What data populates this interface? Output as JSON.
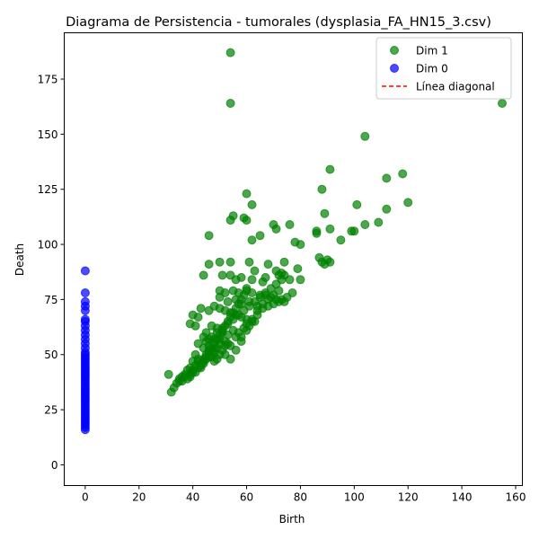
{
  "chart_data": {
    "type": "scatter",
    "title": "Diagrama de Persistencia - tumorales (dysplasia_FA_HN15_3.csv)",
    "xlabel": "Birth",
    "ylabel": "Death",
    "xlim": [
      -7.8,
      162.5
    ],
    "ylim": [
      -9.4,
      196.0
    ],
    "xticks": [
      0,
      20,
      40,
      60,
      80,
      100,
      120,
      140,
      160
    ],
    "yticks": [
      0,
      25,
      50,
      75,
      100,
      125,
      150,
      175
    ],
    "grid": false,
    "legend_position": "top-right",
    "legend": [
      {
        "label": "Dim 1",
        "kind": "marker",
        "color": "#008000"
      },
      {
        "label": "Dim 0",
        "kind": "marker",
        "color": "#0000ff"
      },
      {
        "label": "Línea diagonal",
        "kind": "dashed-line",
        "color": "#ff0000"
      }
    ],
    "series": [
      {
        "name": "Dim 1",
        "color": "#008000",
        "opacity": 0.7,
        "points": [
          [
            54,
            187
          ],
          [
            54,
            164
          ],
          [
            155,
            164
          ],
          [
            104,
            149
          ],
          [
            91,
            134
          ],
          [
            118,
            132
          ],
          [
            112,
            130
          ],
          [
            88,
            125
          ],
          [
            60,
            123
          ],
          [
            120,
            119
          ],
          [
            62,
            118
          ],
          [
            101,
            118
          ],
          [
            112,
            116
          ],
          [
            89,
            114
          ],
          [
            55,
            113
          ],
          [
            54,
            111
          ],
          [
            59,
            112
          ],
          [
            60,
            111
          ],
          [
            70,
            109
          ],
          [
            76,
            109
          ],
          [
            104,
            109
          ],
          [
            109,
            110
          ],
          [
            71,
            107
          ],
          [
            91,
            107
          ],
          [
            65,
            104
          ],
          [
            46,
            104
          ],
          [
            95,
            102
          ],
          [
            62,
            102
          ],
          [
            78,
            101
          ],
          [
            80,
            100
          ],
          [
            86,
            106
          ],
          [
            86,
            105
          ],
          [
            99,
            106
          ],
          [
            100,
            106
          ],
          [
            46,
            91
          ],
          [
            50,
            92
          ],
          [
            54,
            92
          ],
          [
            61,
            92
          ],
          [
            68,
            91
          ],
          [
            74,
            92
          ],
          [
            79,
            89
          ],
          [
            87,
            94
          ],
          [
            88,
            92
          ],
          [
            89,
            91
          ],
          [
            90,
            93
          ],
          [
            91,
            92
          ],
          [
            71,
            88
          ],
          [
            73,
            87
          ],
          [
            74,
            86
          ],
          [
            63,
            88
          ],
          [
            54,
            86
          ],
          [
            51,
            86
          ],
          [
            44,
            86
          ],
          [
            56,
            84
          ],
          [
            58,
            85
          ],
          [
            62,
            84
          ],
          [
            66,
            83
          ],
          [
            67,
            85
          ],
          [
            72,
            86
          ],
          [
            76,
            84
          ],
          [
            80,
            84
          ],
          [
            50,
            79
          ],
          [
            52,
            78
          ],
          [
            55,
            79
          ],
          [
            57,
            78
          ],
          [
            60,
            80
          ],
          [
            62,
            78
          ],
          [
            65,
            77
          ],
          [
            67,
            77
          ],
          [
            69,
            76
          ],
          [
            71,
            75
          ],
          [
            73,
            75
          ],
          [
            75,
            76
          ],
          [
            77,
            78
          ],
          [
            50,
            76
          ],
          [
            53,
            74
          ],
          [
            56,
            75
          ],
          [
            58,
            73
          ],
          [
            61,
            74
          ],
          [
            64,
            72
          ],
          [
            66,
            71
          ],
          [
            68,
            72
          ],
          [
            70,
            73
          ],
          [
            72,
            74
          ],
          [
            74,
            74
          ],
          [
            39,
            64
          ],
          [
            40,
            68
          ],
          [
            42,
            67
          ],
          [
            43,
            71
          ],
          [
            46,
            70
          ],
          [
            48,
            72
          ],
          [
            50,
            71
          ],
          [
            52,
            70
          ],
          [
            54,
            69
          ],
          [
            56,
            68
          ],
          [
            58,
            67
          ],
          [
            60,
            66
          ],
          [
            62,
            65
          ],
          [
            64,
            68
          ],
          [
            41,
            63
          ],
          [
            45,
            60
          ],
          [
            47,
            63
          ],
          [
            49,
            62
          ],
          [
            51,
            60
          ],
          [
            53,
            59
          ],
          [
            55,
            61
          ],
          [
            57,
            60
          ],
          [
            59,
            62
          ],
          [
            61,
            63
          ],
          [
            63,
            65
          ],
          [
            42,
            55
          ],
          [
            44,
            53
          ],
          [
            46,
            57
          ],
          [
            48,
            57
          ],
          [
            50,
            55
          ],
          [
            52,
            56
          ],
          [
            54,
            54
          ],
          [
            56,
            58
          ],
          [
            58,
            58
          ],
          [
            60,
            61
          ],
          [
            39,
            44
          ],
          [
            40,
            47
          ],
          [
            41,
            50
          ],
          [
            42,
            48
          ],
          [
            43,
            46
          ],
          [
            44,
            48
          ],
          [
            45,
            50
          ],
          [
            46,
            52
          ],
          [
            47,
            49
          ],
          [
            48,
            51
          ],
          [
            49,
            53
          ],
          [
            50,
            50
          ],
          [
            51,
            52
          ],
          [
            52,
            54
          ],
          [
            53,
            55
          ],
          [
            35,
            38
          ],
          [
            36,
            40
          ],
          [
            37,
            41
          ],
          [
            38,
            43
          ],
          [
            39,
            40
          ],
          [
            40,
            42
          ],
          [
            41,
            45
          ],
          [
            42,
            47
          ],
          [
            43,
            44
          ],
          [
            44,
            46
          ],
          [
            45,
            48
          ],
          [
            46,
            49
          ],
          [
            47,
            51
          ],
          [
            48,
            47
          ],
          [
            49,
            48
          ],
          [
            31,
            41
          ],
          [
            32,
            33
          ],
          [
            33,
            35
          ],
          [
            34,
            37
          ],
          [
            35,
            39
          ],
          [
            36,
            38
          ],
          [
            37,
            40
          ],
          [
            38,
            39
          ],
          [
            39,
            41
          ],
          [
            40,
            43
          ],
          [
            41,
            42
          ],
          [
            42,
            44
          ],
          [
            43,
            45
          ],
          [
            44,
            47
          ],
          [
            45,
            49
          ],
          [
            46,
            51
          ],
          [
            47,
            53
          ],
          [
            48,
            55
          ],
          [
            49,
            57
          ],
          [
            50,
            59
          ],
          [
            51,
            61
          ],
          [
            52,
            63
          ],
          [
            53,
            65
          ],
          [
            54,
            67
          ],
          [
            55,
            69
          ],
          [
            56,
            71
          ],
          [
            57,
            73
          ],
          [
            58,
            75
          ],
          [
            59,
            77
          ],
          [
            60,
            79
          ],
          [
            45,
            56
          ],
          [
            47,
            58
          ],
          [
            49,
            60
          ],
          [
            51,
            62
          ],
          [
            53,
            64
          ],
          [
            55,
            66
          ],
          [
            57,
            68
          ],
          [
            59,
            70
          ],
          [
            61,
            72
          ],
          [
            63,
            74
          ],
          [
            65,
            76
          ],
          [
            67,
            78
          ],
          [
            69,
            80
          ],
          [
            71,
            82
          ],
          [
            73,
            84
          ],
          [
            44,
            58
          ],
          [
            46,
            54
          ],
          [
            48,
            53
          ],
          [
            50,
            57
          ],
          [
            52,
            50
          ],
          [
            54,
            48
          ],
          [
            56,
            52
          ],
          [
            58,
            56
          ],
          [
            60,
            64
          ],
          [
            62,
            66
          ],
          [
            64,
            70
          ],
          [
            66,
            73
          ],
          [
            68,
            75
          ],
          [
            70,
            77
          ],
          [
            72,
            79
          ]
        ]
      },
      {
        "name": "Dim 0",
        "color": "#0000ff",
        "opacity": 0.7,
        "points": [
          [
            0,
            88
          ],
          [
            0,
            78
          ],
          [
            0,
            74
          ],
          [
            0,
            72
          ],
          [
            0,
            70
          ],
          [
            0,
            66
          ],
          [
            0,
            65
          ],
          [
            0,
            63
          ],
          [
            0,
            61
          ],
          [
            0,
            59
          ],
          [
            0,
            57
          ],
          [
            0,
            55
          ],
          [
            0,
            53
          ],
          [
            0,
            51
          ],
          [
            0,
            50
          ],
          [
            0,
            49
          ],
          [
            0,
            48
          ],
          [
            0,
            47
          ],
          [
            0,
            46
          ],
          [
            0,
            45
          ],
          [
            0,
            44
          ],
          [
            0,
            43
          ],
          [
            0,
            42
          ],
          [
            0,
            41
          ],
          [
            0,
            40
          ],
          [
            0,
            39
          ],
          [
            0,
            38
          ],
          [
            0,
            37
          ],
          [
            0,
            36
          ],
          [
            0,
            35
          ],
          [
            0,
            34
          ],
          [
            0,
            33
          ],
          [
            0,
            32
          ],
          [
            0,
            31
          ],
          [
            0,
            30
          ],
          [
            0,
            29
          ],
          [
            0,
            28
          ],
          [
            0,
            27
          ],
          [
            0,
            26
          ],
          [
            0,
            25
          ],
          [
            0,
            24
          ],
          [
            0,
            23
          ],
          [
            0,
            22
          ],
          [
            0,
            21
          ],
          [
            0,
            20
          ],
          [
            0,
            19
          ],
          [
            0,
            18
          ],
          [
            0,
            17
          ],
          [
            0,
            16
          ]
        ]
      }
    ]
  }
}
